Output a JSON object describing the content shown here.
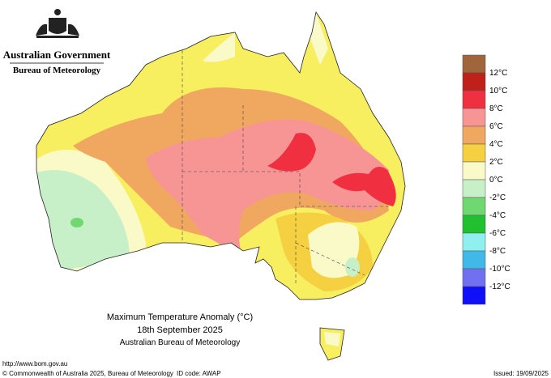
{
  "header": {
    "government": "Australian Government",
    "agency": "Bureau of Meteorology"
  },
  "legend": {
    "colors": [
      "#a0653a",
      "#c0201a",
      "#f03040",
      "#f79595",
      "#f0a860",
      "#f5d040",
      "#fafac8",
      "#c8f0c8",
      "#70d870",
      "#20c030",
      "#90f0f0",
      "#40b8e8",
      "#7070f0",
      "#1010f8"
    ],
    "labels": [
      "12°C",
      "10°C",
      "8°C",
      "6°C",
      "4°C",
      "2°C",
      "0°C",
      "-2°C",
      "-4°C",
      "-6°C",
      "-8°C",
      "-10°C",
      "-12°C"
    ]
  },
  "title": {
    "line1": "Maximum Temperature Anomaly (°C)",
    "line2": "18th September 2025",
    "line3": "Australian Bureau of Meteorology"
  },
  "footer": {
    "url": "http://www.bom.gov.au",
    "copyright": "© Commonwealth of Australia 2025, Bureau of Meteorology",
    "id_code": "ID code: AWAP",
    "issued": "Issued: 19/09/2025"
  }
}
